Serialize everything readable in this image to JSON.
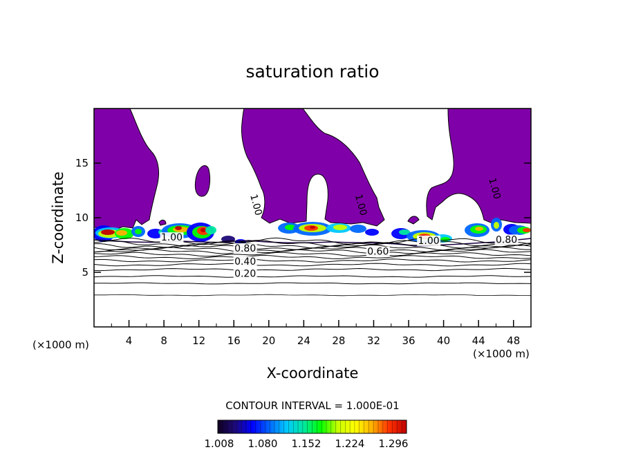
{
  "chart_data": {
    "type": "contour",
    "title": "saturation ratio",
    "xlabel": "X-coordinate",
    "ylabel": "Z-coordinate",
    "x_unit": "(×1000 m)",
    "y_unit": "(×1000 m)",
    "xlim": [
      0,
      50
    ],
    "ylim": [
      0,
      20
    ],
    "x_ticks": [
      "4",
      "8",
      "12",
      "16",
      "20",
      "24",
      "28",
      "32",
      "36",
      "40",
      "44",
      "48"
    ],
    "y_ticks": [
      "5",
      "10",
      "15"
    ],
    "contour_interval_text": "CONTOUR INTERVAL = 1.000E-01",
    "colorbar_labels": [
      "1.008",
      "1.080",
      "1.152",
      "1.224",
      "1.296"
    ],
    "colorbar_range": [
      1.008,
      1.32
    ],
    "contour_labels": [
      {
        "text": "1.00",
        "x": 8.9,
        "z": 7.9
      },
      {
        "text": "0.80",
        "x": 17.3,
        "z": 6.9
      },
      {
        "text": "0.40",
        "x": 17.3,
        "z": 5.7
      },
      {
        "text": "0.20",
        "x": 17.3,
        "z": 4.6
      },
      {
        "text": "1.00",
        "x": 18.2,
        "z": 11.1
      },
      {
        "text": "1.00",
        "x": 30.2,
        "z": 11.1
      },
      {
        "text": "0.60",
        "x": 32.5,
        "z": 6.6
      },
      {
        "text": "1.00",
        "x": 38.3,
        "z": 7.6
      },
      {
        "text": "0.80",
        "x": 47.2,
        "z": 7.7
      },
      {
        "text": "1.00",
        "x": 45.5,
        "z": 12.6
      }
    ],
    "contour_levels": [
      0.2,
      0.4,
      0.6,
      0.8,
      1.0
    ],
    "colors": {
      "subsaturated_fill": "#7f00a8",
      "colormap": [
        "#100020",
        "#1e0a78",
        "#0000ff",
        "#0066ff",
        "#00c8ff",
        "#00e8a0",
        "#00ff00",
        "#c8ff00",
        "#ffff00",
        "#ffb000",
        "#ff3000",
        "#c00000"
      ]
    }
  }
}
